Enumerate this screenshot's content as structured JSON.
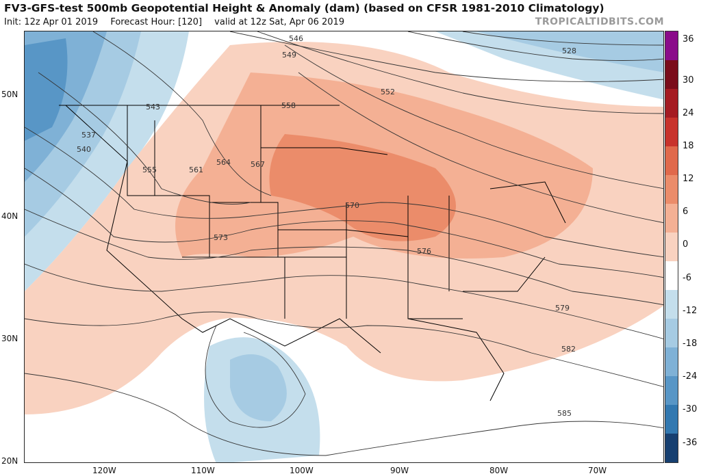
{
  "header": {
    "title": "FV3-GFS-test 500mb Geopotential Height & Anomaly (dam) (based on CFSR 1981-2010 Climatology)",
    "init": "Init: 12z Apr 01 2019",
    "forecast_hour": "Forecast Hour: [120]",
    "valid": "valid at 12z Sat, Apr 06 2019",
    "credit": "TROPICALTIDBITS.COM"
  },
  "map": {
    "lat_labels": [
      "50N",
      "40N",
      "30N",
      "20N"
    ],
    "lon_labels": [
      "120W",
      "110W",
      "100W",
      "90W",
      "80W",
      "70W"
    ],
    "contour_labels": [
      "528",
      "543",
      "546",
      "549",
      "552",
      "555",
      "558",
      "561",
      "564",
      "567",
      "570",
      "573",
      "576",
      "579",
      "582",
      "585",
      "537",
      "540"
    ],
    "colors": {
      "ocean_bg": "#ffffff",
      "state_lines": "#000000",
      "contours": "#333333"
    }
  },
  "colorbar": {
    "labels": [
      "36",
      "30",
      "24",
      "18",
      "12",
      "6",
      "0",
      "-6",
      "-12",
      "-18",
      "-24",
      "-30",
      "-36"
    ],
    "colors": [
      "#8a0b8a",
      "#7a0c1a",
      "#a51b22",
      "#c8332c",
      "#e0694b",
      "#eb8c6a",
      "#f4b094",
      "#f9d2c0",
      "#ffffff",
      "#ffffff",
      "#c4deec",
      "#a6cbe3",
      "#7fb1d6",
      "#5896c6",
      "#3278b0",
      "#1f5a93",
      "#163f70",
      "#0e2a52"
    ]
  }
}
